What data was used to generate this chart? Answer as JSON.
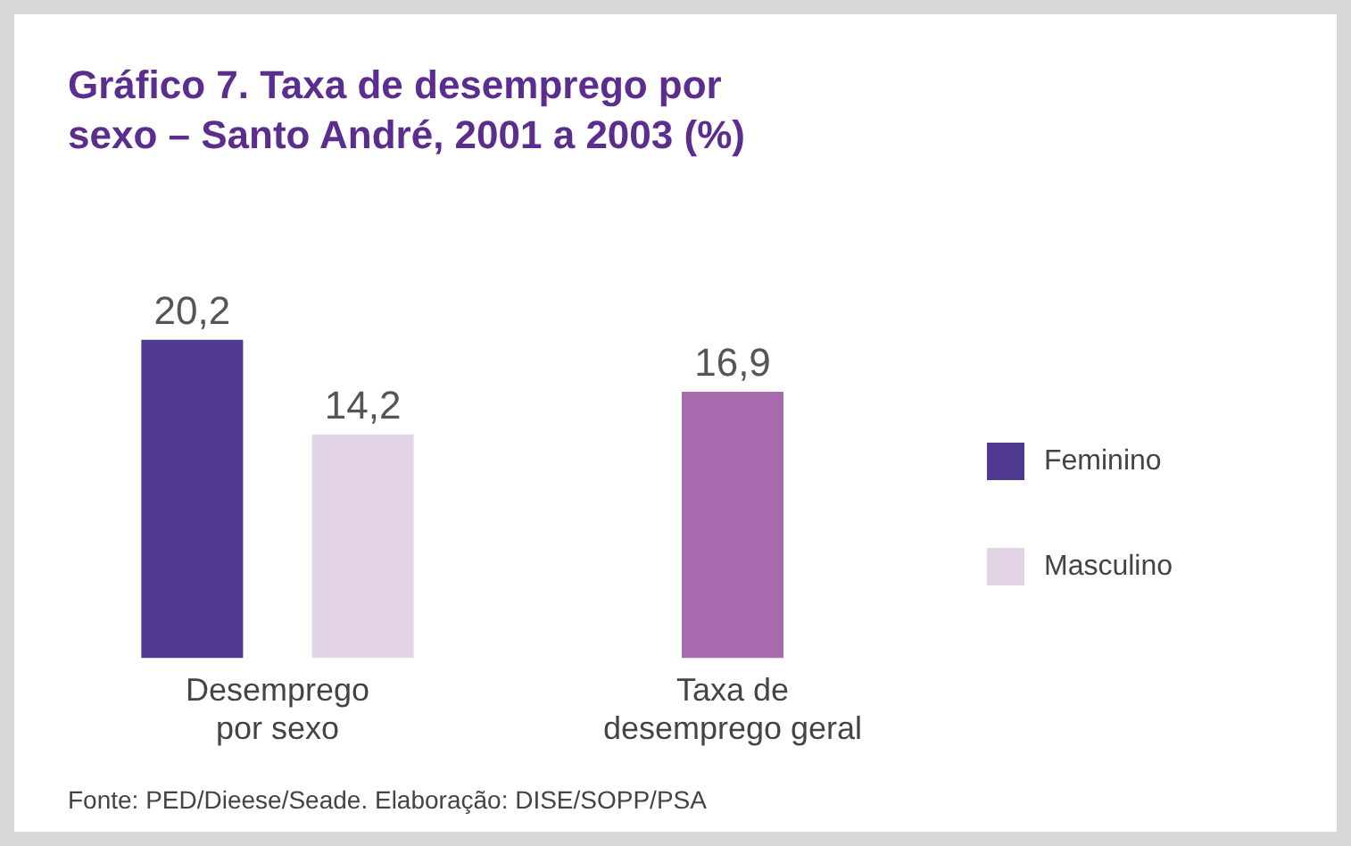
{
  "chart_data": {
    "type": "bar",
    "title": "Gráfico 7. Taxa de desemprego por sexo – Santo André, 2001 a 2003 (%)",
    "categories": [
      "Desemprego por sexo",
      "Taxa de desemprego geral"
    ],
    "series": [
      {
        "name": "Feminino",
        "color": "#4f388f",
        "values": [
          20.2,
          null
        ],
        "value_labels": [
          "20,2",
          null
        ]
      },
      {
        "name": "Masculino",
        "color": "#e2d3e6",
        "values": [
          14.2,
          null
        ],
        "value_labels": [
          "14,2",
          null
        ]
      },
      {
        "color": "#a66aad",
        "values": [
          null,
          16.9
        ],
        "value_labels": [
          null,
          "16,9"
        ]
      }
    ],
    "legend": "right",
    "grid": false,
    "annotations": [
      "Fonte: PED/Dieese/Seade. Elaboração: DISE/SOPP/PSA"
    ]
  }
}
